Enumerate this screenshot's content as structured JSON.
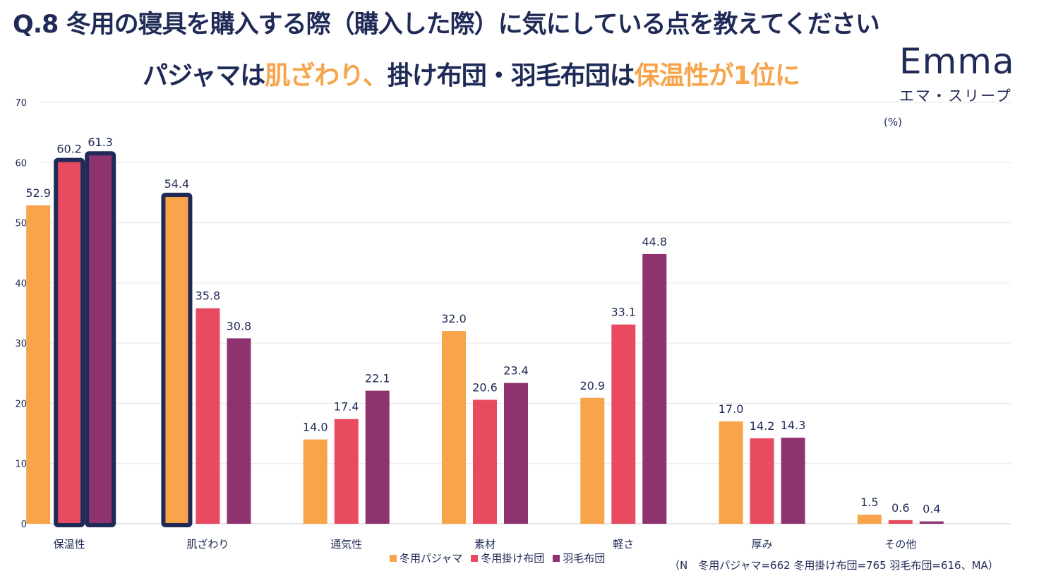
{
  "header": {
    "title": "Q.8 冬用の寝具を購入する際（購入した際）に気にしている点を教えてください",
    "subtitle_parts": [
      {
        "text": "パジャマは",
        "style": "dark"
      },
      {
        "text": "肌ざわり、",
        "style": "accent"
      },
      {
        "text": "掛け布団・羽毛布団は",
        "style": "dark"
      },
      {
        "text": "保温性が1位に",
        "style": "accent"
      }
    ]
  },
  "logo": {
    "word": "Emma",
    "kana": "エマ・スリープ"
  },
  "unit_label": "(%)",
  "footnote": "（N　冬用パジャマ=662 冬用掛け布団=765 羽毛布団=616、MA）",
  "colors": {
    "pajama": "#f7a44a",
    "comforter": "#e84a5f",
    "down": "#8e3370",
    "highlight": "#1f2a56",
    "grid": "#e6e6e6",
    "text": "#1f2a56"
  },
  "chart_data": {
    "type": "bar",
    "title": "",
    "xlabel": "",
    "ylabel": "",
    "ylim": [
      0,
      70
    ],
    "yticks": [
      0,
      10,
      20,
      30,
      40,
      50,
      60,
      70
    ],
    "grid": true,
    "legend_position": "bottom",
    "categories": [
      "保温性",
      "肌ざわり",
      "通気性",
      "素材",
      "軽さ",
      "厚み",
      "その他"
    ],
    "series": [
      {
        "name": "冬用パジャマ",
        "key": "pajama",
        "values": [
          52.9,
          54.4,
          14.0,
          32.0,
          20.9,
          17.0,
          1.5
        ]
      },
      {
        "name": "冬用掛け布団",
        "key": "comforter",
        "values": [
          60.2,
          35.8,
          17.4,
          20.6,
          33.1,
          14.2,
          0.6
        ]
      },
      {
        "name": "羽毛布団",
        "key": "down",
        "values": [
          61.3,
          30.8,
          22.1,
          23.4,
          44.8,
          14.3,
          0.4
        ]
      }
    ],
    "highlighted": [
      {
        "series": "冬用掛け布団",
        "category": "保温性"
      },
      {
        "series": "羽毛布団",
        "category": "保温性"
      },
      {
        "series": "冬用パジャマ",
        "category": "肌ざわり"
      }
    ]
  }
}
